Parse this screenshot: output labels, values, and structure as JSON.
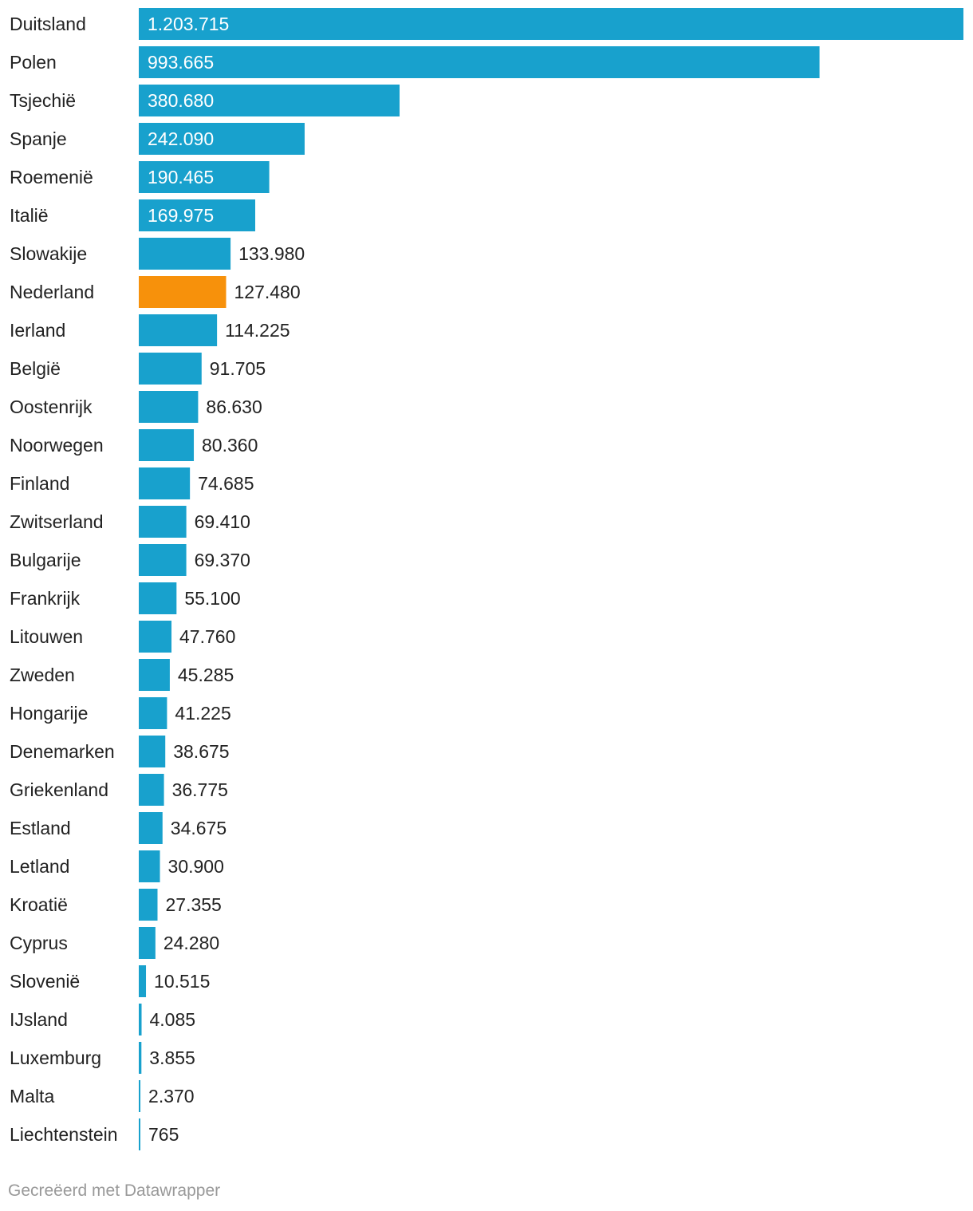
{
  "chart_data": {
    "type": "bar",
    "orientation": "horizontal",
    "categories": [
      "Duitsland",
      "Polen",
      "Tsjechië",
      "Spanje",
      "Roemenië",
      "Italië",
      "Slowakije",
      "Nederland",
      "Ierland",
      "België",
      "Oostenrijk",
      "Noorwegen",
      "Finland",
      "Zwitserland",
      "Bulgarije",
      "Frankrijk",
      "Litouwen",
      "Zweden",
      "Hongarije",
      "Denemarken",
      "Griekenland",
      "Estland",
      "Letland",
      "Kroatië",
      "Cyprus",
      "Slovenië",
      "IJsland",
      "Luxemburg",
      "Malta",
      "Liechtenstein"
    ],
    "values": [
      1203715,
      993665,
      380680,
      242090,
      190465,
      169975,
      133980,
      127480,
      114225,
      91705,
      86630,
      80360,
      74685,
      69410,
      69370,
      55100,
      47760,
      45285,
      41225,
      38675,
      36775,
      34675,
      30900,
      27355,
      24280,
      10515,
      4085,
      3855,
      2370,
      765
    ],
    "value_labels": [
      "1.203.715",
      "993.665",
      "380.680",
      "242.090",
      "190.465",
      "169.975",
      "133.980",
      "127.480",
      "114.225",
      "91.705",
      "86.630",
      "80.360",
      "74.685",
      "69.410",
      "69.370",
      "55.100",
      "47.760",
      "45.285",
      "41.225",
      "38.675",
      "36.775",
      "34.675",
      "30.900",
      "27.355",
      "24.280",
      "10.515",
      "4.085",
      "3.855",
      "2.370",
      "765"
    ],
    "highlight_category": "Nederland",
    "bar_color": "#18a1cd",
    "highlight_color": "#f7910b",
    "xlim": [
      0,
      1203715
    ],
    "grid": false,
    "legend": "none"
  },
  "footer": {
    "credit": "Gecreëerd met Datawrapper"
  }
}
